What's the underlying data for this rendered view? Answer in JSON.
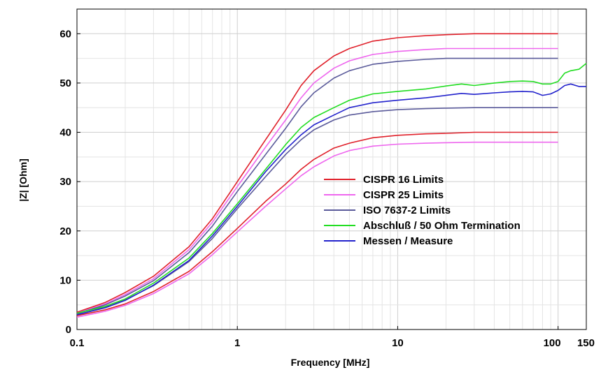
{
  "chart_data": {
    "type": "line",
    "xlabel": "Frequency [MHz]",
    "ylabel": "|Z| [Ohm]",
    "x_scale": "log",
    "xlim": [
      0.1,
      150
    ],
    "ylim": [
      0,
      65
    ],
    "x_ticks": [
      {
        "value": 0.1,
        "label": "0.1"
      },
      {
        "value": 1,
        "label": "1"
      },
      {
        "value": 10,
        "label": "10"
      },
      {
        "value": 100,
        "label": "100"
      },
      {
        "value": 150,
        "label": "150"
      }
    ],
    "y_ticks": [
      0,
      10,
      20,
      30,
      40,
      50,
      60
    ],
    "grid": true,
    "legend_position": "center-right",
    "series": [
      {
        "name": "CISPR 16 Limits",
        "color": "#e0202a",
        "x": [
          0.1,
          0.15,
          0.2,
          0.3,
          0.5,
          0.7,
          1,
          1.5,
          2,
          2.5,
          3,
          4,
          5,
          7,
          10,
          15,
          20,
          30,
          50,
          70,
          100
        ],
        "y": [
          3.5,
          5.5,
          7.5,
          10.8,
          16.8,
          22.5,
          30.0,
          38.5,
          44.5,
          49.5,
          52.5,
          55.5,
          57.0,
          58.5,
          59.2,
          59.6,
          59.8,
          60.0,
          60.0,
          60.0,
          60.0
        ]
      },
      {
        "name": "CISPR 16 Limits",
        "color": "#e0202a",
        "x": [
          0.1,
          0.15,
          0.2,
          0.3,
          0.5,
          0.7,
          1,
          1.5,
          2,
          2.5,
          3,
          4,
          5,
          7,
          10,
          15,
          20,
          30,
          50,
          70,
          100
        ],
        "y": [
          2.8,
          4.0,
          5.2,
          7.7,
          11.8,
          15.8,
          20.5,
          26.0,
          29.5,
          32.5,
          34.5,
          36.8,
          37.8,
          38.9,
          39.4,
          39.7,
          39.8,
          40.0,
          40.0,
          40.0,
          40.0
        ]
      },
      {
        "name": "CISPR 25 Limits",
        "color": "#ee66ee",
        "x": [
          0.1,
          0.15,
          0.2,
          0.3,
          0.5,
          0.7,
          1,
          1.5,
          2,
          2.5,
          3,
          4,
          5,
          7,
          10,
          15,
          20,
          30,
          50,
          70,
          100
        ],
        "y": [
          3.3,
          5.2,
          7.1,
          10.3,
          16.2,
          21.8,
          29.0,
          37.0,
          42.5,
          47.0,
          50.0,
          53.0,
          54.5,
          55.8,
          56.4,
          56.8,
          57.0,
          57.0,
          57.0,
          57.0,
          57.0
        ]
      },
      {
        "name": "CISPR 25 Limits",
        "color": "#ee66ee",
        "x": [
          0.1,
          0.15,
          0.2,
          0.3,
          0.5,
          0.7,
          1,
          1.5,
          2,
          2.5,
          3,
          4,
          5,
          7,
          10,
          15,
          20,
          30,
          50,
          70,
          100
        ],
        "y": [
          2.5,
          3.7,
          4.9,
          7.3,
          11.3,
          15.2,
          19.8,
          25.0,
          28.5,
          31.2,
          33.0,
          35.2,
          36.3,
          37.2,
          37.6,
          37.8,
          37.9,
          38.0,
          38.0,
          38.0,
          38.0
        ]
      },
      {
        "name": "ISO 7637-2 Limits",
        "color": "#5a5a9a",
        "x": [
          0.1,
          0.15,
          0.2,
          0.3,
          0.5,
          0.7,
          1,
          1.5,
          2,
          2.5,
          3,
          4,
          5,
          7,
          10,
          15,
          20,
          30,
          50,
          70,
          100
        ],
        "y": [
          3.2,
          5.0,
          6.8,
          9.9,
          15.6,
          21.0,
          28.0,
          35.5,
          40.8,
          45.2,
          48.0,
          51.0,
          52.5,
          53.8,
          54.4,
          54.8,
          55.0,
          55.0,
          55.0,
          55.0,
          55.0
        ]
      },
      {
        "name": "ISO 7637-2 Limits",
        "color": "#5a5a9a",
        "x": [
          0.1,
          0.15,
          0.2,
          0.3,
          0.5,
          0.7,
          1,
          1.5,
          2,
          2.5,
          3,
          4,
          5,
          7,
          10,
          15,
          20,
          30,
          50,
          70,
          100
        ],
        "y": [
          3.0,
          4.5,
          6.0,
          8.9,
          13.8,
          18.5,
          24.5,
          31.0,
          35.5,
          38.5,
          40.5,
          42.5,
          43.5,
          44.2,
          44.6,
          44.8,
          44.9,
          45.0,
          45.0,
          45.0,
          45.0
        ]
      },
      {
        "name": "Abschluß / 50 Ohm Termination",
        "color": "#22dd22",
        "x": [
          0.1,
          0.15,
          0.2,
          0.3,
          0.5,
          0.7,
          1,
          1.5,
          2,
          2.5,
          3,
          4,
          5,
          7,
          10,
          15,
          20,
          25,
          30,
          40,
          50,
          60,
          70,
          80,
          90,
          100,
          110,
          120,
          135,
          150
        ],
        "y": [
          3.3,
          4.7,
          6.2,
          9.4,
          14.5,
          19.5,
          25.5,
          32.5,
          37.5,
          41.0,
          43.0,
          45.0,
          46.5,
          47.8,
          48.3,
          48.8,
          49.4,
          49.8,
          49.5,
          50.0,
          50.3,
          50.4,
          50.3,
          49.8,
          49.8,
          50.3,
          52.0,
          52.5,
          52.8,
          54.0
        ]
      },
      {
        "name": "Messen / Measure",
        "color": "#2222cc",
        "x": [
          0.1,
          0.15,
          0.2,
          0.3,
          0.5,
          0.7,
          1,
          1.5,
          2,
          2.5,
          3,
          4,
          5,
          7,
          10,
          15,
          20,
          25,
          30,
          40,
          50,
          60,
          70,
          80,
          90,
          100,
          110,
          120,
          135,
          150
        ],
        "y": [
          3.0,
          4.4,
          5.9,
          9.0,
          14.0,
          19.0,
          25.0,
          32.0,
          36.5,
          39.5,
          41.5,
          43.5,
          45.0,
          46.0,
          46.5,
          47.0,
          47.5,
          47.9,
          47.7,
          48.0,
          48.2,
          48.3,
          48.2,
          47.5,
          47.8,
          48.5,
          49.5,
          49.8,
          49.3,
          49.3
        ]
      }
    ],
    "legend": [
      {
        "label": "CISPR 16 Limits",
        "color": "#e0202a"
      },
      {
        "label": "CISPR 25 Limits",
        "color": "#ee66ee"
      },
      {
        "label": "ISO 7637-2 Limits",
        "color": "#5a5a9a"
      },
      {
        "label": "Abschluß / 50 Ohm Termination",
        "color": "#22dd22"
      },
      {
        "label": "Messen / Measure",
        "color": "#2222cc"
      }
    ]
  }
}
